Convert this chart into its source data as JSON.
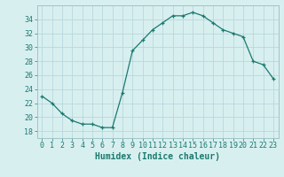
{
  "x": [
    0,
    1,
    2,
    3,
    4,
    5,
    6,
    7,
    8,
    9,
    10,
    11,
    12,
    13,
    14,
    15,
    16,
    17,
    18,
    19,
    20,
    21,
    22,
    23
  ],
  "y": [
    23.0,
    22.0,
    20.5,
    19.5,
    19.0,
    19.0,
    18.5,
    18.5,
    23.5,
    29.5,
    31.0,
    32.5,
    33.5,
    34.5,
    34.5,
    35.0,
    34.5,
    33.5,
    32.5,
    32.0,
    31.5,
    28.0,
    27.5,
    25.5
  ],
  "line_color": "#1a7a6e",
  "marker": "+",
  "bg_color": "#d8eff0",
  "grid_color": "#b8d8dc",
  "xlabel": "Humidex (Indice chaleur)",
  "ylabel": "",
  "title": "",
  "ylim": [
    17,
    36
  ],
  "xlim": [
    -0.5,
    23.5
  ],
  "yticks": [
    18,
    20,
    22,
    24,
    26,
    28,
    30,
    32,
    34
  ],
  "xticks": [
    0,
    1,
    2,
    3,
    4,
    5,
    6,
    7,
    8,
    9,
    10,
    11,
    12,
    13,
    14,
    15,
    16,
    17,
    18,
    19,
    20,
    21,
    22,
    23
  ],
  "tick_label_fontsize": 6,
  "xlabel_fontsize": 7
}
